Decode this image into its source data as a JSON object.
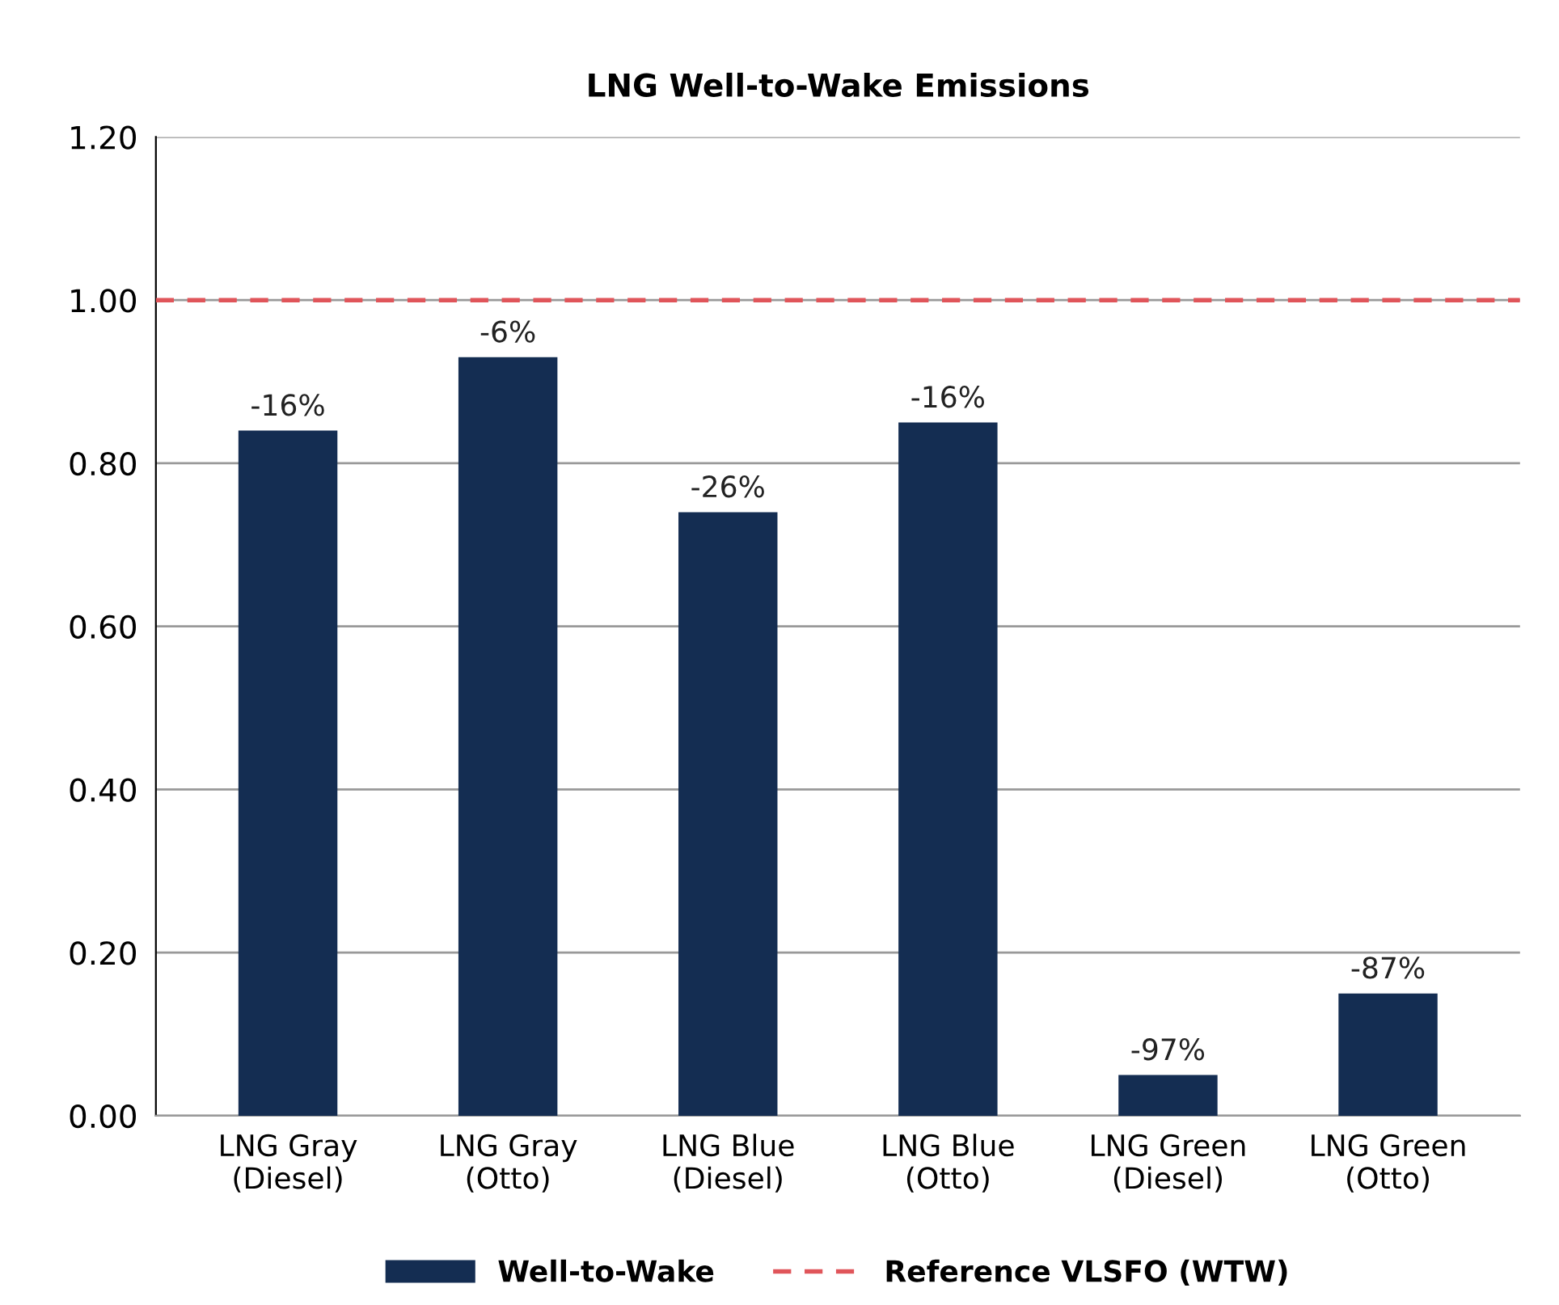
{
  "chart_data": {
    "type": "bar",
    "title": "LNG Well-to-Wake Emissions",
    "categories": [
      "LNG Gray\n(Diesel)",
      "LNG Gray\n(Otto)",
      "LNG Blue\n(Diesel)",
      "LNG Blue\n(Otto)",
      "LNG Green\n(Diesel)",
      "LNG Green\n(Otto)"
    ],
    "series": [
      {
        "name": "Well-to-Wake",
        "color": "#142d52",
        "values": [
          0.84,
          0.93,
          0.74,
          0.85,
          0.05,
          0.15
        ]
      }
    ],
    "annotations": [
      {
        "text": "-16%",
        "x": "LNG Gray\n(Diesel)",
        "y": 0.84
      },
      {
        "text": "-6%",
        "x": "LNG Gray\n(Otto)",
        "y": 0.93
      },
      {
        "text": "-26%",
        "x": "LNG Blue\n(Diesel)",
        "y": 0.74
      },
      {
        "text": "-16%",
        "x": "LNG Blue\n(Otto)",
        "y": 0.85
      },
      {
        "text": "-97%",
        "x": "LNG Green\n(Diesel)",
        "y": 0.05
      },
      {
        "text": "-87%",
        "x": "LNG Green\n(Otto)",
        "y": 0.15
      }
    ],
    "ref_lines": [
      {
        "axis": "y",
        "value": 1.0,
        "label": "Reference VLSFO (WTW)",
        "color": "#e0555a",
        "line_style": "dashed"
      }
    ],
    "ylim": [
      0,
      1.2
    ],
    "yticks": [
      {
        "value": 0,
        "label": "0.00"
      },
      {
        "value": 0.2,
        "label": "0.20"
      },
      {
        "value": 0.4,
        "label": "0.40"
      },
      {
        "value": 0.6,
        "label": "0.60"
      },
      {
        "value": 0.8,
        "label": "0.80"
      },
      {
        "value": 1.0,
        "label": "1.00"
      },
      {
        "value": 1.2,
        "label": "1.20"
      }
    ],
    "grid": "y",
    "legend": "bottom"
  }
}
